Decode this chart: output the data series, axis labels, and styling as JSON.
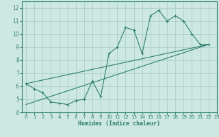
{
  "xlabel": "Humidex (Indice chaleur)",
  "ylabel": "",
  "bg_color": "#cce8e0",
  "grid_color": "#aad0c8",
  "line_color": "#2e7d6e",
  "xlim": [
    -0.5,
    23
  ],
  "ylim": [
    4,
    12.5
  ],
  "xticks": [
    0,
    1,
    2,
    3,
    4,
    5,
    6,
    7,
    8,
    9,
    10,
    11,
    12,
    13,
    14,
    15,
    16,
    17,
    18,
    19,
    20,
    21,
    22,
    23
  ],
  "yticks": [
    4,
    5,
    6,
    7,
    8,
    9,
    10,
    11,
    12
  ],
  "curve_x": [
    0,
    1,
    2,
    3,
    4,
    5,
    6,
    7,
    8,
    9,
    10,
    11,
    12,
    13,
    14,
    15,
    16,
    17,
    18,
    19,
    20,
    21,
    22
  ],
  "curve_y": [
    6.2,
    5.8,
    5.5,
    4.8,
    4.7,
    4.6,
    4.9,
    5.0,
    6.4,
    5.2,
    8.5,
    9.0,
    10.5,
    10.3,
    8.5,
    11.4,
    11.8,
    11.0,
    11.4,
    11.0,
    10.0,
    9.2,
    9.2
  ],
  "upper_line_x": [
    0,
    22
  ],
  "upper_line_y": [
    6.2,
    9.2
  ],
  "lower_line_x": [
    0,
    22
  ],
  "lower_line_y": [
    4.6,
    9.2
  ]
}
